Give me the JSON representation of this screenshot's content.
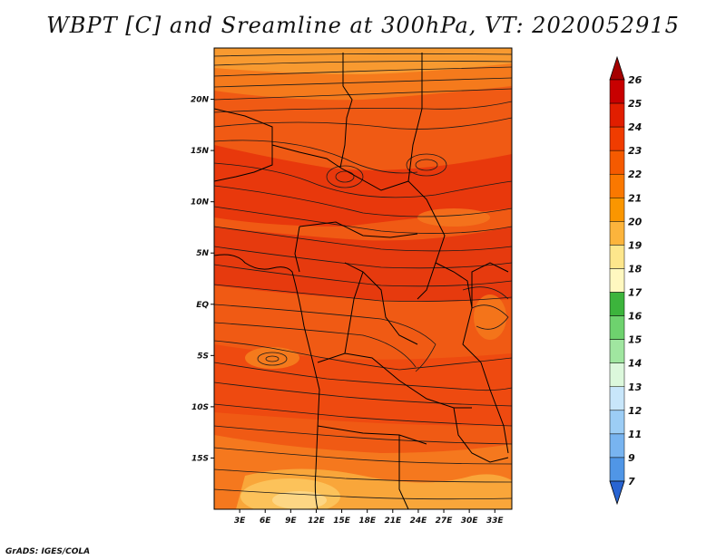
{
  "title": "WBPT [C] and Sreamline at 300hPa, VT: 2020052915",
  "credit": "GrADS: IGES/COLA",
  "map": {
    "lon_range": [
      0,
      35
    ],
    "lat_range": [
      -20,
      25
    ],
    "lon_ticks": [
      "3E",
      "6E",
      "9E",
      "12E",
      "15E",
      "18E",
      "21E",
      "24E",
      "27E",
      "30E",
      "33E"
    ],
    "lon_tick_values": [
      3,
      6,
      9,
      12,
      15,
      18,
      21,
      24,
      27,
      30,
      33
    ],
    "lat_ticks": [
      "20N",
      "15N",
      "10N",
      "5N",
      "EQ",
      "5S",
      "10S",
      "15S"
    ],
    "lat_tick_values": [
      20,
      15,
      10,
      5,
      0,
      -5,
      -10,
      -15
    ]
  },
  "colorbar": {
    "labels": [
      "26",
      "25",
      "24",
      "23",
      "22",
      "21",
      "20",
      "19",
      "18",
      "17",
      "16",
      "15",
      "14",
      "13",
      "12",
      "11",
      "9",
      "7"
    ],
    "colors": [
      "#a50000",
      "#c80000",
      "#e11e00",
      "#f03c00",
      "#f55a00",
      "#fa7800",
      "#fa9600",
      "#fcb43c",
      "#fde68c",
      "#fff8c0",
      "#3cb43c",
      "#6ed26e",
      "#a0e6a0",
      "#dcf8dc",
      "#c8e6fa",
      "#9ccdf5",
      "#78b4f0",
      "#5096e6",
      "#3c7dde",
      "#2864d2"
    ]
  }
}
